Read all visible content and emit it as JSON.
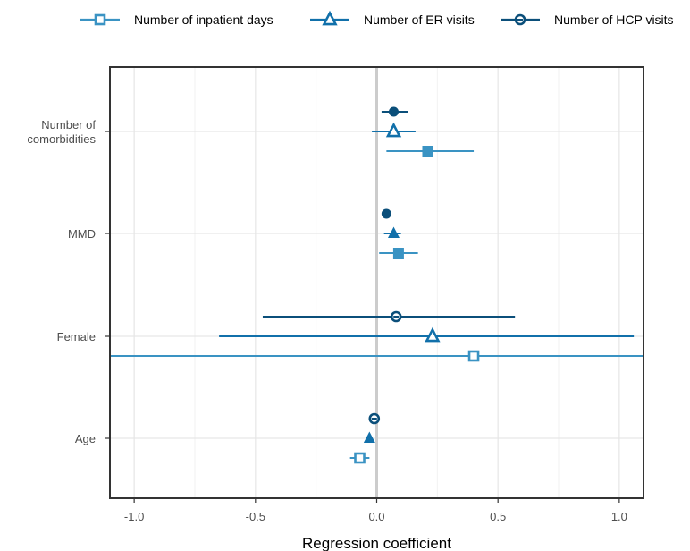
{
  "chart_data": {
    "type": "forest",
    "title": "",
    "xlabel": "Regression coefficient",
    "ylabel": "",
    "xlim": [
      -1.1,
      1.1
    ],
    "x_ticks": [
      "-1.0",
      "-0.5",
      "0.0",
      "0.5",
      "1.0"
    ],
    "x_tick_values": [
      -1.0,
      -0.5,
      0.0,
      0.5,
      1.0
    ],
    "reference_line": 0,
    "grid": true,
    "legend_position": "top",
    "categories": [
      "Number of\ncomorbidities",
      "MMD",
      "Female",
      "Age"
    ],
    "series": [
      {
        "name": "Number of inpatient days",
        "marker": "square",
        "color": "#3A93C3",
        "estimate": [
          0.21,
          0.09,
          0.4,
          -0.07
        ],
        "ci_low": [
          0.04,
          0.01,
          -1.15,
          -0.11
        ],
        "ci_high": [
          0.4,
          0.17,
          1.15,
          -0.03
        ]
      },
      {
        "name": "Number of ER visits",
        "marker": "triangle",
        "color": "#1170AA",
        "estimate": [
          0.07,
          0.07,
          0.23,
          -0.03
        ],
        "ci_low": [
          -0.02,
          0.03,
          -0.65,
          -0.03
        ],
        "ci_high": [
          0.16,
          0.1,
          1.06,
          -0.03
        ]
      },
      {
        "name": "Number of HCP visits",
        "marker": "circle",
        "color": "#0B4F7A",
        "estimate": [
          0.07,
          0.04,
          0.08,
          -0.01
        ],
        "ci_low": [
          0.02,
          0.03,
          -0.47,
          -0.01
        ],
        "ci_high": [
          0.13,
          0.05,
          0.57,
          -0.01
        ]
      }
    ],
    "filled_markers": [
      [
        true,
        true,
        false,
        false
      ],
      [
        false,
        true,
        false,
        true
      ],
      [
        true,
        true,
        false,
        false
      ]
    ]
  }
}
